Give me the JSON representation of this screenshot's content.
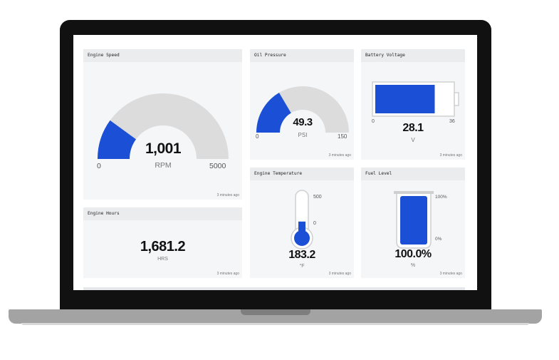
{
  "engine_speed": {
    "title": "Engine Speed",
    "value": "1,001",
    "unit": "RPM",
    "min": "0",
    "max": "5000",
    "level": 0.2,
    "updated": "3 minutes ago",
    "fill_color": "#1a4fd6"
  },
  "oil_pressure": {
    "title": "Oil Pressure",
    "value": "49.3",
    "unit": "PSI",
    "min": "0",
    "max": "150",
    "level": 0.33,
    "updated": "3 minutes ago",
    "fill_color": "#1a4fd6"
  },
  "battery_voltage": {
    "title": "Battery Voltage",
    "value": "28.1",
    "unit": "V",
    "min": "0",
    "max": "36",
    "level": 0.78,
    "updated": "3 minutes ago",
    "fill_color": "#1a4fd6"
  },
  "engine_hours": {
    "title": "Engine Hours",
    "value": "1,681.2",
    "unit": "HRS",
    "updated": "3 minutes ago"
  },
  "engine_temperature": {
    "title": "Engine Temperature",
    "value": "183.2",
    "unit": "°F",
    "min": "0",
    "max": "500",
    "level": 0.37,
    "updated": "3 minutes ago",
    "fill_color": "#1a4fd6"
  },
  "fuel_level": {
    "title": "Fuel Level",
    "value": "100.0%",
    "unit": "%",
    "min": "0%",
    "max": "100%",
    "level": 1.0,
    "updated": "3 minutes ago",
    "fill_color": "#1a4fd6"
  }
}
